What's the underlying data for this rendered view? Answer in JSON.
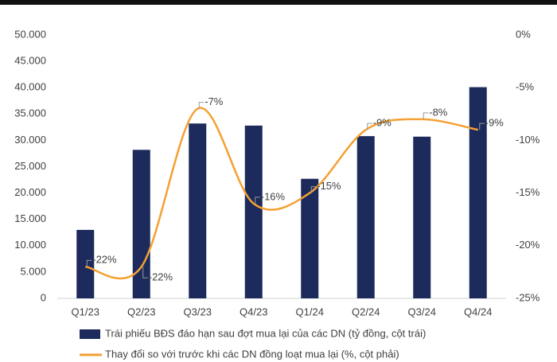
{
  "chart_data": {
    "type": "bar-line",
    "categories": [
      "Q1/23",
      "Q2/23",
      "Q3/23",
      "Q4/23",
      "Q1/24",
      "Q2/24",
      "Q3/24",
      "Q4/24"
    ],
    "series": [
      {
        "name": "Trái phiếu BĐS đáo hạn sau đợt mua lại của các DN (tỷ đồng, cột trái)",
        "type": "bar",
        "color": "#1c2b5c",
        "values": [
          13000,
          28200,
          33200,
          32800,
          22700,
          30800,
          30700,
          40100
        ]
      },
      {
        "name": "Thay đổi so với trước khi các DN đồng loạt mua lại (%, cột phải)",
        "type": "line",
        "axis": "y2",
        "color": "#f5a033",
        "values": [
          -22,
          -22,
          -7,
          -16,
          -15,
          -9,
          -8,
          -9
        ],
        "value_labels": [
          "-22%",
          "-22%",
          "-7%",
          "-16%",
          "-15%",
          "-9%",
          "-8%",
          "-9%"
        ]
      }
    ],
    "ylim": [
      0,
      50000
    ],
    "yticks": [
      0,
      {
        "value": 5000,
        "label": "5.000"
      },
      {
        "value": 10000,
        "label": "10.000"
      },
      {
        "value": 15000,
        "label": "15.000"
      },
      {
        "value": 20000,
        "label": "20.000"
      },
      {
        "value": 25000,
        "label": "25.000"
      },
      {
        "value": 30000,
        "label": "30.000"
      },
      {
        "value": 35000,
        "label": "35.000"
      },
      {
        "value": 40000,
        "label": "40.000"
      },
      {
        "value": 45000,
        "label": "45.000"
      },
      {
        "value": 50000,
        "label": "50.000"
      }
    ],
    "y2lim": [
      -25,
      0
    ],
    "y2ticks": [
      {
        "value": 0,
        "label": "0%"
      },
      {
        "value": -5,
        "label": "-5%"
      },
      {
        "value": -10,
        "label": "-10%"
      },
      {
        "value": -15,
        "label": "-15%"
      },
      {
        "value": -20,
        "label": "-20%"
      },
      {
        "value": -25,
        "label": "-25%"
      }
    ],
    "grid": false,
    "legend": "bottom"
  }
}
